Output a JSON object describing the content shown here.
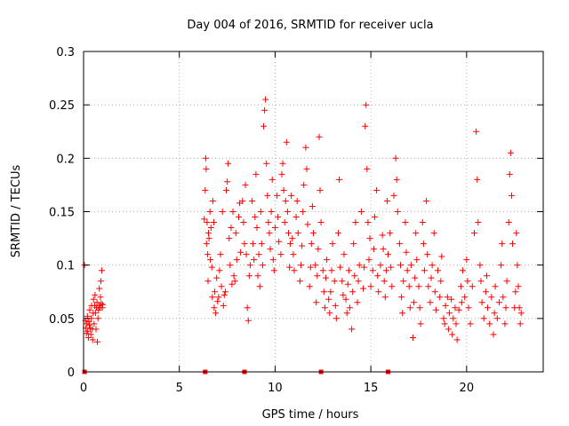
{
  "chart_data": {
    "type": "scatter",
    "title": "Day 004 of 2016, SRMTID for receiver ucla",
    "xlabel": "GPS time / hours",
    "ylabel": "SRMTID / TECUs",
    "xlim": [
      0,
      24
    ],
    "ylim": [
      0,
      0.3
    ],
    "x_ticks": [
      0,
      5,
      10,
      15,
      20
    ],
    "y_ticks": [
      0,
      0.05,
      0.1,
      0.15,
      0.2,
      0.25,
      0.3
    ],
    "x_tick_labels": [
      "0",
      "5",
      "10",
      "15",
      "20"
    ],
    "y_tick_labels": [
      "0",
      "0.05",
      "0.1",
      "0.15",
      "0.2",
      "0.25",
      "0.3"
    ],
    "grid": true,
    "marker": "plus",
    "color": "#ff0000",
    "zero_markers_x": [
      0.05,
      6.35,
      8.4,
      12.4,
      15.9
    ],
    "points": [
      [
        0.05,
        0.1
      ],
      [
        0.1,
        0.048
      ],
      [
        0.12,
        0.041
      ],
      [
        0.15,
        0.036
      ],
      [
        0.18,
        0.045
      ],
      [
        0.2,
        0.052
      ],
      [
        0.22,
        0.038
      ],
      [
        0.25,
        0.032
      ],
      [
        0.28,
        0.047
      ],
      [
        0.3,
        0.044
      ],
      [
        0.32,
        0.058
      ],
      [
        0.35,
        0.041
      ],
      [
        0.38,
        0.035
      ],
      [
        0.4,
        0.05
      ],
      [
        0.42,
        0.062
      ],
      [
        0.45,
        0.04
      ],
      [
        0.48,
        0.03
      ],
      [
        0.5,
        0.055
      ],
      [
        0.52,
        0.068
      ],
      [
        0.55,
        0.045
      ],
      [
        0.58,
        0.062
      ],
      [
        0.6,
        0.072
      ],
      [
        0.62,
        0.055
      ],
      [
        0.65,
        0.04
      ],
      [
        0.68,
        0.06
      ],
      [
        0.7,
        0.065
      ],
      [
        0.72,
        0.028
      ],
      [
        0.75,
        0.05
      ],
      [
        0.78,
        0.058
      ],
      [
        0.8,
        0.062
      ],
      [
        0.82,
        0.078
      ],
      [
        0.85,
        0.06
      ],
      [
        0.88,
        0.07
      ],
      [
        0.9,
        0.085
      ],
      [
        0.92,
        0.064
      ],
      [
        0.95,
        0.095
      ],
      [
        0.98,
        0.06
      ],
      [
        1.0,
        0.063
      ],
      [
        6.3,
        0.143
      ],
      [
        6.35,
        0.17
      ],
      [
        6.38,
        0.2
      ],
      [
        6.4,
        0.19
      ],
      [
        6.42,
        0.12
      ],
      [
        6.45,
        0.14
      ],
      [
        6.48,
        0.11
      ],
      [
        6.5,
        0.085
      ],
      [
        6.52,
        0.13
      ],
      [
        6.55,
        0.125
      ],
      [
        6.6,
        0.15
      ],
      [
        6.62,
        0.105
      ],
      [
        6.65,
        0.135
      ],
      [
        6.7,
        0.098
      ],
      [
        6.72,
        0.07
      ],
      [
        6.75,
        0.16
      ],
      [
        6.8,
        0.14
      ],
      [
        6.82,
        0.06
      ],
      [
        6.85,
        0.075
      ],
      [
        6.9,
        0.055
      ],
      [
        6.95,
        0.088
      ],
      [
        7.0,
        0.066
      ],
      [
        7.05,
        0.07
      ],
      [
        7.1,
        0.095
      ],
      [
        7.15,
        0.11
      ],
      [
        7.2,
        0.08
      ],
      [
        7.25,
        0.15
      ],
      [
        7.3,
        0.062
      ],
      [
        7.35,
        0.072
      ],
      [
        7.4,
        0.075
      ],
      [
        7.45,
        0.17
      ],
      [
        7.5,
        0.178
      ],
      [
        7.55,
        0.195
      ],
      [
        7.6,
        0.125
      ],
      [
        7.65,
        0.1
      ],
      [
        7.7,
        0.135
      ],
      [
        7.75,
        0.082
      ],
      [
        7.8,
        0.15
      ],
      [
        7.85,
        0.09
      ],
      [
        7.9,
        0.085
      ],
      [
        7.95,
        0.13
      ],
      [
        8.0,
        0.105
      ],
      [
        8.1,
        0.145
      ],
      [
        8.15,
        0.158
      ],
      [
        8.2,
        0.112
      ],
      [
        8.3,
        0.16
      ],
      [
        8.35,
        0.14
      ],
      [
        8.4,
        0.12
      ],
      [
        8.45,
        0.175
      ],
      [
        8.5,
        0.11
      ],
      [
        8.55,
        0.06
      ],
      [
        8.6,
        0.048
      ],
      [
        8.65,
        0.09
      ],
      [
        8.7,
        0.1
      ],
      [
        8.8,
        0.16
      ],
      [
        8.85,
        0.12
      ],
      [
        8.9,
        0.105
      ],
      [
        8.95,
        0.145
      ],
      [
        9.0,
        0.185
      ],
      [
        9.05,
        0.135
      ],
      [
        9.1,
        0.09
      ],
      [
        9.15,
        0.11
      ],
      [
        9.2,
        0.08
      ],
      [
        9.25,
        0.15
      ],
      [
        9.3,
        0.12
      ],
      [
        9.35,
        0.1
      ],
      [
        9.4,
        0.23
      ],
      [
        9.45,
        0.245
      ],
      [
        9.5,
        0.255
      ],
      [
        9.55,
        0.195
      ],
      [
        9.6,
        0.165
      ],
      [
        9.65,
        0.14
      ],
      [
        9.7,
        0.13
      ],
      [
        9.75,
        0.115
      ],
      [
        9.8,
        0.15
      ],
      [
        9.85,
        0.18
      ],
      [
        9.9,
        0.105
      ],
      [
        9.95,
        0.095
      ],
      [
        10.0,
        0.135
      ],
      [
        10.1,
        0.165
      ],
      [
        10.15,
        0.145
      ],
      [
        10.2,
        0.122
      ],
      [
        10.3,
        0.11
      ],
      [
        10.35,
        0.185
      ],
      [
        10.4,
        0.195
      ],
      [
        10.45,
        0.17
      ],
      [
        10.5,
        0.14
      ],
      [
        10.55,
        0.16
      ],
      [
        10.6,
        0.215
      ],
      [
        10.65,
        0.15
      ],
      [
        10.7,
        0.13
      ],
      [
        10.75,
        0.098
      ],
      [
        10.8,
        0.12
      ],
      [
        10.85,
        0.165
      ],
      [
        10.9,
        0.125
      ],
      [
        10.95,
        0.11
      ],
      [
        11.0,
        0.095
      ],
      [
        11.1,
        0.145
      ],
      [
        11.15,
        0.16
      ],
      [
        11.2,
        0.13
      ],
      [
        11.3,
        0.085
      ],
      [
        11.35,
        0.1
      ],
      [
        11.4,
        0.118
      ],
      [
        11.45,
        0.15
      ],
      [
        11.5,
        0.175
      ],
      [
        11.6,
        0.21
      ],
      [
        11.65,
        0.19
      ],
      [
        11.7,
        0.138
      ],
      [
        11.8,
        0.08
      ],
      [
        11.85,
        0.098
      ],
      [
        11.9,
        0.12
      ],
      [
        11.95,
        0.155
      ],
      [
        12.0,
        0.13
      ],
      [
        12.1,
        0.1
      ],
      [
        12.15,
        0.065
      ],
      [
        12.2,
        0.09
      ],
      [
        12.25,
        0.115
      ],
      [
        12.3,
        0.22
      ],
      [
        12.35,
        0.17
      ],
      [
        12.4,
        0.14
      ],
      [
        12.5,
        0.095
      ],
      [
        12.55,
        0.075
      ],
      [
        12.6,
        0.06
      ],
      [
        12.65,
        0.088
      ],
      [
        12.7,
        0.105
      ],
      [
        12.8,
        0.068
      ],
      [
        12.85,
        0.055
      ],
      [
        12.9,
        0.075
      ],
      [
        12.95,
        0.095
      ],
      [
        13.0,
        0.12
      ],
      [
        13.1,
        0.085
      ],
      [
        13.15,
        0.062
      ],
      [
        13.2,
        0.05
      ],
      [
        13.3,
        0.13
      ],
      [
        13.35,
        0.18
      ],
      [
        13.4,
        0.098
      ],
      [
        13.5,
        0.085
      ],
      [
        13.55,
        0.072
      ],
      [
        13.6,
        0.11
      ],
      [
        13.7,
        0.068
      ],
      [
        13.75,
        0.055
      ],
      [
        13.8,
        0.082
      ],
      [
        13.85,
        0.095
      ],
      [
        13.9,
        0.06
      ],
      [
        14.0,
        0.04
      ],
      [
        14.05,
        0.075
      ],
      [
        14.1,
        0.12
      ],
      [
        14.15,
        0.09
      ],
      [
        14.2,
        0.14
      ],
      [
        14.3,
        0.065
      ],
      [
        14.35,
        0.085
      ],
      [
        14.4,
        0.1
      ],
      [
        14.5,
        0.15
      ],
      [
        14.6,
        0.078
      ],
      [
        14.65,
        0.098
      ],
      [
        14.7,
        0.23
      ],
      [
        14.75,
        0.25
      ],
      [
        14.8,
        0.19
      ],
      [
        14.85,
        0.14
      ],
      [
        14.9,
        0.105
      ],
      [
        14.95,
        0.125
      ],
      [
        15.0,
        0.08
      ],
      [
        15.1,
        0.095
      ],
      [
        15.15,
        0.115
      ],
      [
        15.2,
        0.145
      ],
      [
        15.3,
        0.17
      ],
      [
        15.35,
        0.09
      ],
      [
        15.4,
        0.075
      ],
      [
        15.5,
        0.1
      ],
      [
        15.6,
        0.128
      ],
      [
        15.65,
        0.115
      ],
      [
        15.7,
        0.085
      ],
      [
        15.75,
        0.07
      ],
      [
        15.8,
        0.095
      ],
      [
        15.85,
        0.16
      ],
      [
        15.9,
        0.11
      ],
      [
        16.0,
        0.13
      ],
      [
        16.05,
        0.098
      ],
      [
        16.1,
        0.08
      ],
      [
        16.2,
        0.165
      ],
      [
        16.3,
        0.2
      ],
      [
        16.35,
        0.18
      ],
      [
        16.4,
        0.15
      ],
      [
        16.5,
        0.12
      ],
      [
        16.55,
        0.1
      ],
      [
        16.6,
        0.07
      ],
      [
        16.65,
        0.055
      ],
      [
        16.7,
        0.085
      ],
      [
        16.8,
        0.14
      ],
      [
        16.85,
        0.112
      ],
      [
        16.9,
        0.095
      ],
      [
        17.0,
        0.08
      ],
      [
        17.05,
        0.06
      ],
      [
        17.1,
        0.1
      ],
      [
        17.2,
        0.032
      ],
      [
        17.25,
        0.065
      ],
      [
        17.3,
        0.088
      ],
      [
        17.35,
        0.13
      ],
      [
        17.4,
        0.105
      ],
      [
        17.5,
        0.08
      ],
      [
        17.55,
        0.06
      ],
      [
        17.6,
        0.045
      ],
      [
        17.7,
        0.14
      ],
      [
        17.75,
        0.12
      ],
      [
        17.8,
        0.095
      ],
      [
        17.9,
        0.16
      ],
      [
        17.95,
        0.11
      ],
      [
        18.0,
        0.08
      ],
      [
        18.1,
        0.065
      ],
      [
        18.15,
        0.088
      ],
      [
        18.2,
        0.1
      ],
      [
        18.3,
        0.13
      ],
      [
        18.35,
        0.075
      ],
      [
        18.4,
        0.058
      ],
      [
        18.5,
        0.095
      ],
      [
        18.6,
        0.07
      ],
      [
        18.65,
        0.085
      ],
      [
        18.7,
        0.108
      ],
      [
        18.8,
        0.05
      ],
      [
        18.85,
        0.045
      ],
      [
        18.9,
        0.062
      ],
      [
        19.0,
        0.07
      ],
      [
        19.05,
        0.04
      ],
      [
        19.1,
        0.055
      ],
      [
        19.2,
        0.068
      ],
      [
        19.25,
        0.035
      ],
      [
        19.3,
        0.05
      ],
      [
        19.4,
        0.06
      ],
      [
        19.45,
        0.045
      ],
      [
        19.5,
        0.03
      ],
      [
        19.6,
        0.058
      ],
      [
        19.7,
        0.08
      ],
      [
        19.75,
        0.065
      ],
      [
        19.8,
        0.095
      ],
      [
        19.9,
        0.07
      ],
      [
        20.0,
        0.105
      ],
      [
        20.05,
        0.085
      ],
      [
        20.1,
        0.06
      ],
      [
        20.2,
        0.045
      ],
      [
        20.3,
        0.08
      ],
      [
        20.4,
        0.13
      ],
      [
        20.5,
        0.225
      ],
      [
        20.55,
        0.18
      ],
      [
        20.6,
        0.14
      ],
      [
        20.7,
        0.1
      ],
      [
        20.75,
        0.085
      ],
      [
        20.8,
        0.065
      ],
      [
        20.9,
        0.05
      ],
      [
        21.0,
        0.075
      ],
      [
        21.05,
        0.09
      ],
      [
        21.1,
        0.06
      ],
      [
        21.2,
        0.045
      ],
      [
        21.3,
        0.07
      ],
      [
        21.4,
        0.035
      ],
      [
        21.45,
        0.055
      ],
      [
        21.5,
        0.08
      ],
      [
        21.6,
        0.05
      ],
      [
        21.7,
        0.065
      ],
      [
        21.8,
        0.1
      ],
      [
        21.85,
        0.12
      ],
      [
        21.9,
        0.07
      ],
      [
        22.0,
        0.045
      ],
      [
        22.05,
        0.06
      ],
      [
        22.1,
        0.085
      ],
      [
        22.2,
        0.14
      ],
      [
        22.25,
        0.185
      ],
      [
        22.3,
        0.205
      ],
      [
        22.35,
        0.165
      ],
      [
        22.4,
        0.12
      ],
      [
        22.5,
        0.06
      ],
      [
        22.55,
        0.075
      ],
      [
        22.6,
        0.13
      ],
      [
        22.65,
        0.1
      ],
      [
        22.7,
        0.08
      ],
      [
        22.75,
        0.06
      ],
      [
        22.8,
        0.045
      ],
      [
        22.85,
        0.055
      ]
    ]
  }
}
